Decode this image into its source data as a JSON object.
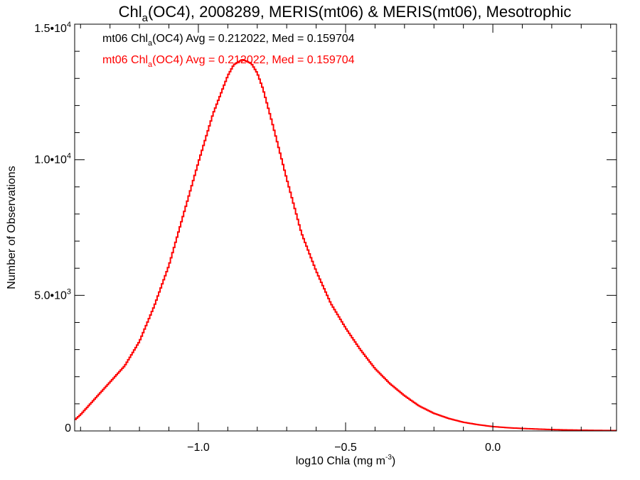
{
  "chart_data": {
    "type": "histogram",
    "title": {
      "prefix": "Chl",
      "subscript": "a",
      "suffix": "(OC4), 2008289, MERIS(mt06) & MERIS(mt06), Mesotrophic"
    },
    "xlabel": {
      "main": "log10 Chla (mg m",
      "superscript": "-3",
      "close": ")"
    },
    "ylabel": "Number of Observations",
    "xlim": [
      -1.42,
      0.42
    ],
    "ylim": [
      0,
      15000
    ],
    "x_ticks": [
      {
        "value": -1.0,
        "label": "−1.0"
      },
      {
        "value": -0.5,
        "label": "−0.5"
      },
      {
        "value": 0.0,
        "label": "0.0"
      }
    ],
    "x_minor_step": 0.1,
    "y_ticks": [
      {
        "value": 0,
        "mantissa": "0",
        "exponent": ""
      },
      {
        "value": 5000,
        "mantissa": "5.0•10",
        "exponent": "3"
      },
      {
        "value": 10000,
        "mantissa": "1.0•10",
        "exponent": "4"
      },
      {
        "value": 15000,
        "mantissa": "1.5•10",
        "exponent": "4"
      }
    ],
    "y_minor_step": 1000,
    "grid": false,
    "legend": [
      {
        "prefix": "mt06 Chl",
        "subscript": "a",
        "suffix": "(OC4) Avg = 0.212022, Med = 0.159704",
        "color": "#000000"
      },
      {
        "prefix": "mt06 Chl",
        "subscript": "a",
        "suffix": "(OC4) Avg = 0.212022, Med = 0.159704",
        "color": "#ff0000"
      }
    ],
    "legend_position": "top-left",
    "series": [
      {
        "color": "#ff0000",
        "x": [
          -1.42,
          -1.4,
          -1.35,
          -1.3,
          -1.25,
          -1.2,
          -1.15,
          -1.1,
          -1.05,
          -1.0,
          -0.95,
          -0.9,
          -0.88,
          -0.85,
          -0.82,
          -0.8,
          -0.78,
          -0.75,
          -0.7,
          -0.65,
          -0.6,
          -0.55,
          -0.5,
          -0.45,
          -0.4,
          -0.35,
          -0.3,
          -0.25,
          -0.2,
          -0.15,
          -0.1,
          -0.05,
          0.0,
          0.05,
          0.1,
          0.15,
          0.2,
          0.25,
          0.3,
          0.35,
          0.42
        ],
        "y": [
          400,
          600,
          1200,
          1800,
          2400,
          3300,
          4600,
          6100,
          8000,
          9900,
          11700,
          13100,
          13500,
          13700,
          13550,
          13200,
          12600,
          11400,
          9300,
          7300,
          5900,
          4700,
          3800,
          3000,
          2300,
          1750,
          1300,
          920,
          650,
          460,
          320,
          230,
          160,
          120,
          90,
          70,
          50,
          38,
          28,
          20,
          12
        ]
      }
    ]
  }
}
